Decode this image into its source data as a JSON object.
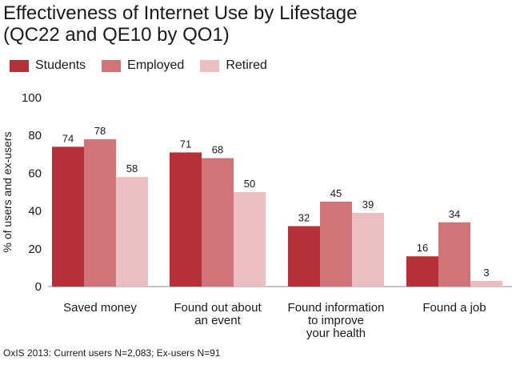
{
  "chart_data": {
    "type": "bar",
    "title": "Effectiveness of Internet Use by Lifestage",
    "subtitle": "(QC22 and QE10 by QO1)",
    "ylabel": "% of users and ex-users",
    "xlabel": "",
    "ylim": [
      0,
      100
    ],
    "yticks": [
      0,
      20,
      40,
      60,
      80,
      100
    ],
    "grid": false,
    "legend_position": "top-left",
    "categories": [
      [
        "Saved money"
      ],
      [
        "Found out about",
        "an event"
      ],
      [
        "Found information",
        "to improve",
        "your health"
      ],
      [
        "Found a job"
      ]
    ],
    "series": [
      {
        "name": "Students",
        "color": "#b5313a",
        "values": [
          74,
          71,
          32,
          16
        ]
      },
      {
        "name": "Employed",
        "color": "#cf7478",
        "values": [
          78,
          68,
          45,
          34
        ]
      },
      {
        "name": "Retired",
        "color": "#ebbfc1",
        "values": [
          58,
          50,
          39,
          3
        ]
      }
    ]
  },
  "footnote": "OxIS 2013: Current users N=2,083; Ex-users N=91"
}
